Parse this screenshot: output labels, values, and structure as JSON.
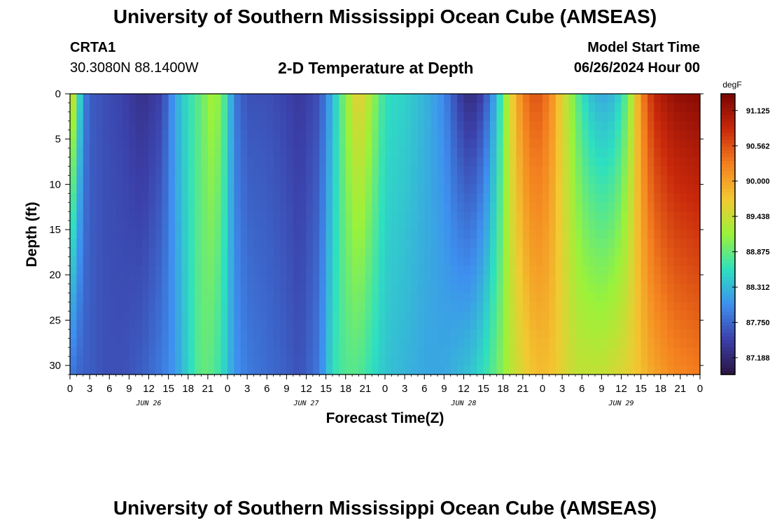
{
  "title": "University of Southern Mississippi Ocean Cube (AMSEAS)",
  "footer_title": "University of Southern Mississippi Ocean Cube (AMSEAS)",
  "station": {
    "name": "CRTA1",
    "coords": "30.3080N  88.1400W"
  },
  "subtitle": "2-D Temperature at Depth",
  "model_start": {
    "label": "Model Start Time",
    "value": "06/26/2024 Hour 00"
  },
  "chart_data": {
    "type": "heatmap",
    "title": "2-D Temperature at Depth",
    "xlabel": "Forecast Time(Z)",
    "ylabel": "Depth (ft)",
    "x_range_hours": [
      0,
      96
    ],
    "y_range_ft": [
      0,
      31
    ],
    "x_tick_labels": [
      "0",
      "3",
      "6",
      "9",
      "12",
      "15",
      "18",
      "21",
      "0",
      "3",
      "6",
      "9",
      "12",
      "15",
      "18",
      "21",
      "0",
      "3",
      "6",
      "9",
      "12",
      "15",
      "18",
      "21",
      "0",
      "3",
      "6",
      "9",
      "12",
      "15",
      "18",
      "21",
      "0"
    ],
    "y_ticks": [
      0,
      5,
      10,
      15,
      20,
      25,
      30
    ],
    "date_labels": [
      {
        "label": "JUN 26",
        "hour": 12
      },
      {
        "label": "JUN 27",
        "hour": 36
      },
      {
        "label": "JUN 28",
        "hour": 60
      },
      {
        "label": "JUN 29",
        "hour": 84
      }
    ],
    "colorbar": {
      "unit": "degF",
      "min": 86.92,
      "max": 91.39,
      "tick_values": [
        87.188,
        87.75,
        88.312,
        88.875,
        89.438,
        90.0,
        90.562,
        91.125
      ],
      "tick_labels": [
        "87.188",
        "87.750",
        "88.312",
        "88.875",
        "89.438",
        "90.000",
        "90.562",
        "91.125"
      ],
      "colors": [
        "#2a1440",
        "#3b3fa8",
        "#3e8fef",
        "#2ee0c0",
        "#9af23a",
        "#f3c931",
        "#f4801f",
        "#c9290b",
        "#7a0403"
      ]
    },
    "temperature_profile": [
      {
        "hour": 0,
        "surface": 89.8,
        "bottom": 87.9
      },
      {
        "hour": 1,
        "surface": 89.0,
        "bottom": 87.8
      },
      {
        "hour": 2,
        "surface": 88.0,
        "bottom": 87.7
      },
      {
        "hour": 3,
        "surface": 87.7,
        "bottom": 87.7
      },
      {
        "hour": 5,
        "surface": 87.6,
        "bottom": 87.6
      },
      {
        "hour": 8,
        "surface": 87.5,
        "bottom": 87.6
      },
      {
        "hour": 11,
        "surface": 87.3,
        "bottom": 87.7
      },
      {
        "hour": 14,
        "surface": 87.5,
        "bottom": 87.9
      },
      {
        "hour": 16,
        "surface": 88.2,
        "bottom": 88.1
      },
      {
        "hour": 18,
        "surface": 88.6,
        "bottom": 88.5
      },
      {
        "hour": 20,
        "surface": 88.9,
        "bottom": 88.9
      },
      {
        "hour": 22,
        "surface": 89.3,
        "bottom": 88.8
      },
      {
        "hour": 24,
        "surface": 88.6,
        "bottom": 88.4
      },
      {
        "hour": 25,
        "surface": 87.9,
        "bottom": 88.1
      },
      {
        "hour": 27,
        "surface": 87.6,
        "bottom": 87.9
      },
      {
        "hour": 30,
        "surface": 87.6,
        "bottom": 87.8
      },
      {
        "hour": 33,
        "surface": 87.5,
        "bottom": 87.7
      },
      {
        "hour": 35,
        "surface": 87.4,
        "bottom": 87.6
      },
      {
        "hour": 38,
        "surface": 87.6,
        "bottom": 87.9
      },
      {
        "hour": 40,
        "surface": 88.3,
        "bottom": 88.6
      },
      {
        "hour": 42,
        "surface": 89.1,
        "bottom": 88.8
      },
      {
        "hour": 44,
        "surface": 89.7,
        "bottom": 88.8
      },
      {
        "hour": 46,
        "surface": 89.2,
        "bottom": 88.6
      },
      {
        "hour": 48,
        "surface": 88.6,
        "bottom": 88.4
      },
      {
        "hour": 51,
        "surface": 88.5,
        "bottom": 88.3
      },
      {
        "hour": 54,
        "surface": 88.3,
        "bottom": 88.2
      },
      {
        "hour": 57,
        "surface": 88.0,
        "bottom": 88.2
      },
      {
        "hour": 59,
        "surface": 87.5,
        "bottom": 88.3
      },
      {
        "hour": 61,
        "surface": 87.2,
        "bottom": 88.4
      },
      {
        "hour": 63,
        "surface": 87.5,
        "bottom": 88.6
      },
      {
        "hour": 65,
        "surface": 88.3,
        "bottom": 88.9
      },
      {
        "hour": 67,
        "surface": 89.5,
        "bottom": 89.3
      },
      {
        "hour": 69,
        "surface": 90.3,
        "bottom": 89.6
      },
      {
        "hour": 71,
        "surface": 90.6,
        "bottom": 89.8
      },
      {
        "hour": 73,
        "surface": 90.3,
        "bottom": 89.8
      },
      {
        "hour": 75,
        "surface": 89.6,
        "bottom": 89.6
      },
      {
        "hour": 77,
        "surface": 88.9,
        "bottom": 89.4
      },
      {
        "hour": 79,
        "surface": 88.4,
        "bottom": 89.4
      },
      {
        "hour": 81,
        "surface": 88.2,
        "bottom": 89.4
      },
      {
        "hour": 83,
        "surface": 88.3,
        "bottom": 89.5
      },
      {
        "hour": 85,
        "surface": 88.9,
        "bottom": 89.6
      },
      {
        "hour": 87,
        "surface": 90.2,
        "bottom": 89.8
      },
      {
        "hour": 89,
        "surface": 90.9,
        "bottom": 90.0
      },
      {
        "hour": 92,
        "surface": 91.2,
        "bottom": 90.2
      },
      {
        "hour": 96,
        "surface": 91.3,
        "bottom": 90.3
      }
    ]
  }
}
